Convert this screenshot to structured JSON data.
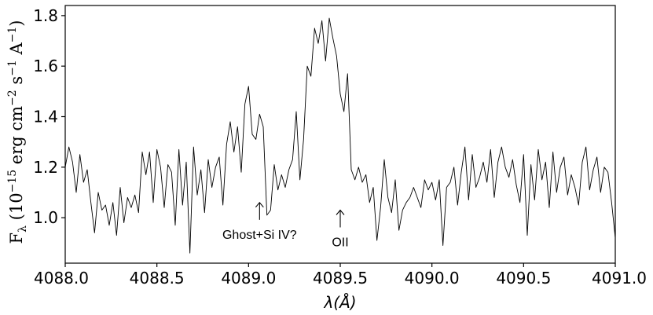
{
  "chart_data": {
    "type": "line",
    "xlabel": "λ(Å)",
    "ylabel_parts": {
      "symbol": "F",
      "subscript": "λ",
      "open": " (10",
      "exp1": "−15",
      "mid1": " erg cm",
      "exp2": "−2",
      "mid2": " s",
      "exp3": "−1",
      "mid3": " A",
      "exp4": "−1",
      "close": ")"
    },
    "xlim": [
      4088.0,
      4091.0
    ],
    "ylim": [
      0.82,
      1.84
    ],
    "x_ticks": [
      4088.0,
      4088.5,
      4089.0,
      4089.5,
      4090.0,
      4090.5,
      4091.0
    ],
    "x_tick_labels": [
      "4088.0",
      "4088.5",
      "4089.0",
      "4089.5",
      "4090.0",
      "4090.5",
      "4091.0"
    ],
    "y_ticks": [
      1.0,
      1.2,
      1.4,
      1.6,
      1.8
    ],
    "y_tick_labels": [
      "1.0",
      "1.2",
      "1.4",
      "1.6",
      "1.8"
    ],
    "grid": false,
    "series": [
      {
        "color": "#000000",
        "x": [
          4088.0,
          4088.02,
          4088.04,
          4088.06,
          4088.08,
          4088.1,
          4088.12,
          4088.14,
          4088.16,
          4088.18,
          4088.2,
          4088.22,
          4088.24,
          4088.26,
          4088.28,
          4088.3,
          4088.32,
          4088.34,
          4088.36,
          4088.38,
          4088.4,
          4088.42,
          4088.44,
          4088.46,
          4088.48,
          4088.5,
          4088.52,
          4088.54,
          4088.56,
          4088.58,
          4088.6,
          4088.62,
          4088.64,
          4088.66,
          4088.68,
          4088.7,
          4088.72,
          4088.74,
          4088.76,
          4088.78,
          4088.8,
          4088.82,
          4088.84,
          4088.86,
          4088.88,
          4088.9,
          4088.92,
          4088.94,
          4088.96,
          4088.98,
          4089.0,
          4089.02,
          4089.04,
          4089.06,
          4089.08,
          4089.1,
          4089.12,
          4089.14,
          4089.16,
          4089.18,
          4089.2,
          4089.22,
          4089.24,
          4089.26,
          4089.28,
          4089.3,
          4089.32,
          4089.34,
          4089.36,
          4089.38,
          4089.4,
          4089.42,
          4089.44,
          4089.46,
          4089.48,
          4089.5,
          4089.52,
          4089.54,
          4089.56,
          4089.58,
          4089.6,
          4089.62,
          4089.64,
          4089.66,
          4089.68,
          4089.7,
          4089.72,
          4089.74,
          4089.76,
          4089.78,
          4089.8,
          4089.82,
          4089.84,
          4089.86,
          4089.88,
          4089.9,
          4089.92,
          4089.94,
          4089.96,
          4089.98,
          4090.0,
          4090.02,
          4090.04,
          4090.06,
          4090.08,
          4090.1,
          4090.12,
          4090.14,
          4090.16,
          4090.18,
          4090.2,
          4090.22,
          4090.24,
          4090.26,
          4090.28,
          4090.3,
          4090.32,
          4090.34,
          4090.36,
          4090.38,
          4090.4,
          4090.42,
          4090.44,
          4090.46,
          4090.48,
          4090.5,
          4090.52,
          4090.54,
          4090.56,
          4090.58,
          4090.6,
          4090.62,
          4090.64,
          4090.66,
          4090.68,
          4090.7,
          4090.72,
          4090.74,
          4090.76,
          4090.78,
          4090.8,
          4090.82,
          4090.84,
          4090.86,
          4090.88,
          4090.9,
          4090.92,
          4090.94,
          4090.96,
          4090.98,
          4091.0
        ],
        "y": [
          1.2,
          1.28,
          1.22,
          1.1,
          1.25,
          1.14,
          1.19,
          1.06,
          0.94,
          1.1,
          1.03,
          1.05,
          0.97,
          1.06,
          0.93,
          1.12,
          0.98,
          1.08,
          1.04,
          1.09,
          1.02,
          1.26,
          1.17,
          1.26,
          1.06,
          1.27,
          1.2,
          1.04,
          1.21,
          1.18,
          0.97,
          1.27,
          1.05,
          1.22,
          0.86,
          1.28,
          1.09,
          1.19,
          1.02,
          1.23,
          1.12,
          1.2,
          1.24,
          1.05,
          1.29,
          1.38,
          1.26,
          1.36,
          1.18,
          1.45,
          1.52,
          1.33,
          1.31,
          1.41,
          1.36,
          1.01,
          1.03,
          1.21,
          1.11,
          1.17,
          1.12,
          1.19,
          1.23,
          1.42,
          1.15,
          1.31,
          1.6,
          1.56,
          1.75,
          1.69,
          1.78,
          1.62,
          1.79,
          1.71,
          1.64,
          1.49,
          1.42,
          1.57,
          1.19,
          1.15,
          1.2,
          1.14,
          1.17,
          1.06,
          1.12,
          0.91,
          1.04,
          1.23,
          1.08,
          1.02,
          1.15,
          0.95,
          1.03,
          1.06,
          1.08,
          1.12,
          1.08,
          1.04,
          1.15,
          1.11,
          1.14,
          1.07,
          1.15,
          0.89,
          1.12,
          1.14,
          1.2,
          1.05,
          1.18,
          1.28,
          1.07,
          1.25,
          1.12,
          1.16,
          1.22,
          1.14,
          1.27,
          1.08,
          1.22,
          1.28,
          1.2,
          1.16,
          1.23,
          1.13,
          1.06,
          1.25,
          0.93,
          1.21,
          1.07,
          1.27,
          1.15,
          1.22,
          1.04,
          1.26,
          1.1,
          1.2,
          1.24,
          1.09,
          1.17,
          1.12,
          1.05,
          1.22,
          1.28,
          1.11,
          1.19,
          1.24,
          1.1,
          1.2,
          1.18,
          1.06,
          0.92
        ]
      }
    ],
    "annotations": [
      {
        "text": "Ghost+Si IV?",
        "x": 4089.06,
        "arrow_y": 1.06
      },
      {
        "text": "OII",
        "x": 4089.5,
        "arrow_y": 1.03
      }
    ]
  }
}
